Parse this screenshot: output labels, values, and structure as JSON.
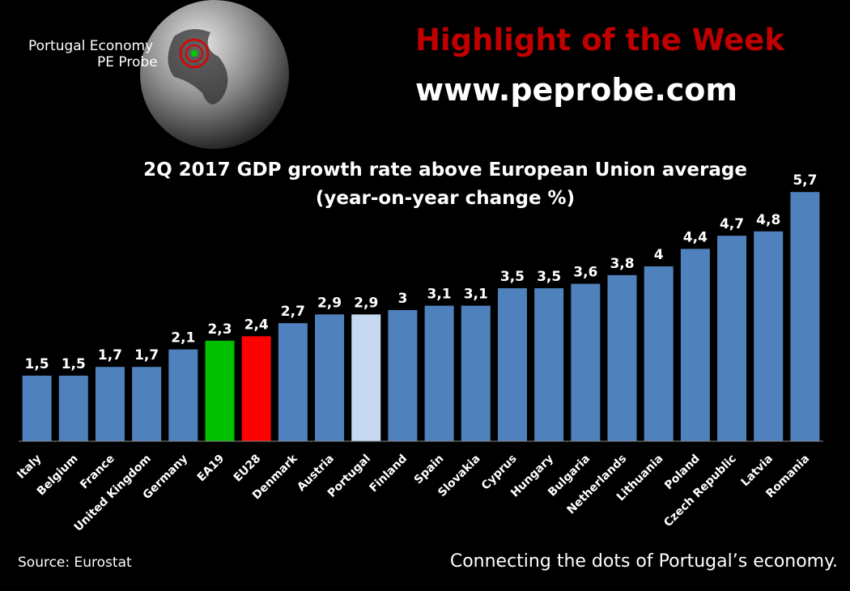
{
  "header": {
    "logo_line1": "Portugal Economy",
    "logo_line2": "PE Probe",
    "headline": "Highlight of the Week",
    "website": "www.peprobe.com"
  },
  "chart_data": {
    "type": "bar",
    "title": "2Q 2017 GDP growth rate above European Union average",
    "subtitle": "(year-on-year change %)",
    "categories": [
      "Italy",
      "Belgium",
      "France",
      "United Kingdom",
      "Germany",
      "EA19",
      "EU28",
      "Denmark",
      "Austria",
      "Portugal",
      "Finland",
      "Spain",
      "Slovakia",
      "Cyprus",
      "Hungary",
      "Bulgaria",
      "Netherlands",
      "Lithuania",
      "Poland",
      "Czech Republic",
      "Latvia",
      "Romania"
    ],
    "values": [
      1.5,
      1.5,
      1.7,
      1.7,
      2.1,
      2.3,
      2.4,
      2.7,
      2.9,
      2.9,
      3,
      3.1,
      3.1,
      3.5,
      3.5,
      3.6,
      3.8,
      4,
      4.4,
      4.7,
      4.8,
      5.7
    ],
    "value_labels": [
      "1,5",
      "1,5",
      "1,7",
      "1,7",
      "2,1",
      "2,3",
      "2,4",
      "2,7",
      "2,9",
      "2,9",
      "3",
      "3,1",
      "3,1",
      "3,5",
      "3,5",
      "3,6",
      "3,8",
      "4",
      "4,4",
      "4,7",
      "4,8",
      "5,7"
    ],
    "colors": [
      "#4f81bd",
      "#4f81bd",
      "#4f81bd",
      "#4f81bd",
      "#4f81bd",
      "#00c000",
      "#ff0000",
      "#4f81bd",
      "#4f81bd",
      "#c6d9f1",
      "#4f81bd",
      "#4f81bd",
      "#4f81bd",
      "#4f81bd",
      "#4f81bd",
      "#4f81bd",
      "#4f81bd",
      "#4f81bd",
      "#4f81bd",
      "#4f81bd",
      "#4f81bd",
      "#4f81bd"
    ],
    "ylim": [
      0,
      6
    ],
    "source": "Source: Eurostat",
    "tagline": "Connecting the dots of Portugal’s economy."
  }
}
